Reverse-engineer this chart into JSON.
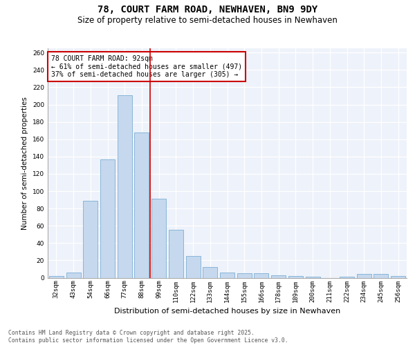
{
  "title": "78, COURT FARM ROAD, NEWHAVEN, BN9 9DY",
  "subtitle": "Size of property relative to semi-detached houses in Newhaven",
  "xlabel": "Distribution of semi-detached houses by size in Newhaven",
  "ylabel": "Number of semi-detached properties",
  "categories": [
    "32sqm",
    "43sqm",
    "54sqm",
    "66sqm",
    "77sqm",
    "88sqm",
    "99sqm",
    "110sqm",
    "122sqm",
    "133sqm",
    "144sqm",
    "155sqm",
    "166sqm",
    "178sqm",
    "189sqm",
    "200sqm",
    "211sqm",
    "222sqm",
    "234sqm",
    "245sqm",
    "256sqm"
  ],
  "values": [
    2,
    6,
    89,
    137,
    211,
    168,
    91,
    55,
    25,
    12,
    6,
    5,
    5,
    3,
    2,
    1,
    0,
    1,
    4,
    4,
    2
  ],
  "bar_color": "#c5d8ed",
  "bar_edge_color": "#7bafd4",
  "vline_x": 5.5,
  "annotation_title": "78 COURT FARM ROAD: 92sqm",
  "annotation_line1": "← 61% of semi-detached houses are smaller (497)",
  "annotation_line2": "37% of semi-detached houses are larger (305) →",
  "annotation_box_color": "#ffffff",
  "annotation_box_edge": "#cc0000",
  "vline_color": "#cc0000",
  "ylim": [
    0,
    265
  ],
  "yticks": [
    0,
    20,
    40,
    60,
    80,
    100,
    120,
    140,
    160,
    180,
    200,
    220,
    240,
    260
  ],
  "background_color": "#eef2fa",
  "footer_line1": "Contains HM Land Registry data © Crown copyright and database right 2025.",
  "footer_line2": "Contains public sector information licensed under the Open Government Licence v3.0.",
  "title_fontsize": 10,
  "subtitle_fontsize": 8.5,
  "xlabel_fontsize": 8,
  "ylabel_fontsize": 7.5,
  "tick_fontsize": 6.5,
  "annotation_fontsize": 7,
  "footer_fontsize": 5.8
}
